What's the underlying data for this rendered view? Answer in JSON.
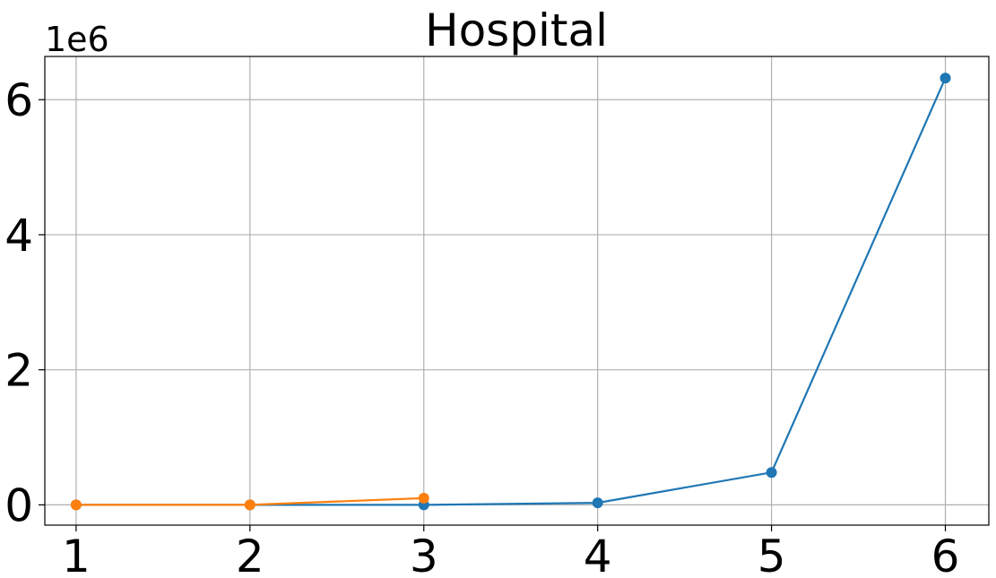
{
  "chart_data": {
    "type": "line",
    "title": "Hospital",
    "xlabel": "",
    "ylabel": "",
    "y_offset_label": "1e6",
    "xlim": [
      0.82,
      6.25
    ],
    "ylim": [
      -0.3,
      6.64
    ],
    "x_ticks": [
      1,
      2,
      3,
      4,
      5,
      6
    ],
    "y_ticks": [
      0,
      2,
      4,
      6
    ],
    "grid": true,
    "series": [
      {
        "color": "#1f77b4",
        "x": [
          1,
          2,
          3,
          4,
          5,
          6
        ],
        "y": [
          0.0,
          0.0,
          0.0,
          0.03,
          0.48,
          6.32
        ]
      },
      {
        "color": "#ff7f0e",
        "x": [
          1,
          2,
          3
        ],
        "y": [
          0.0,
          0.0,
          0.1
        ]
      }
    ]
  }
}
